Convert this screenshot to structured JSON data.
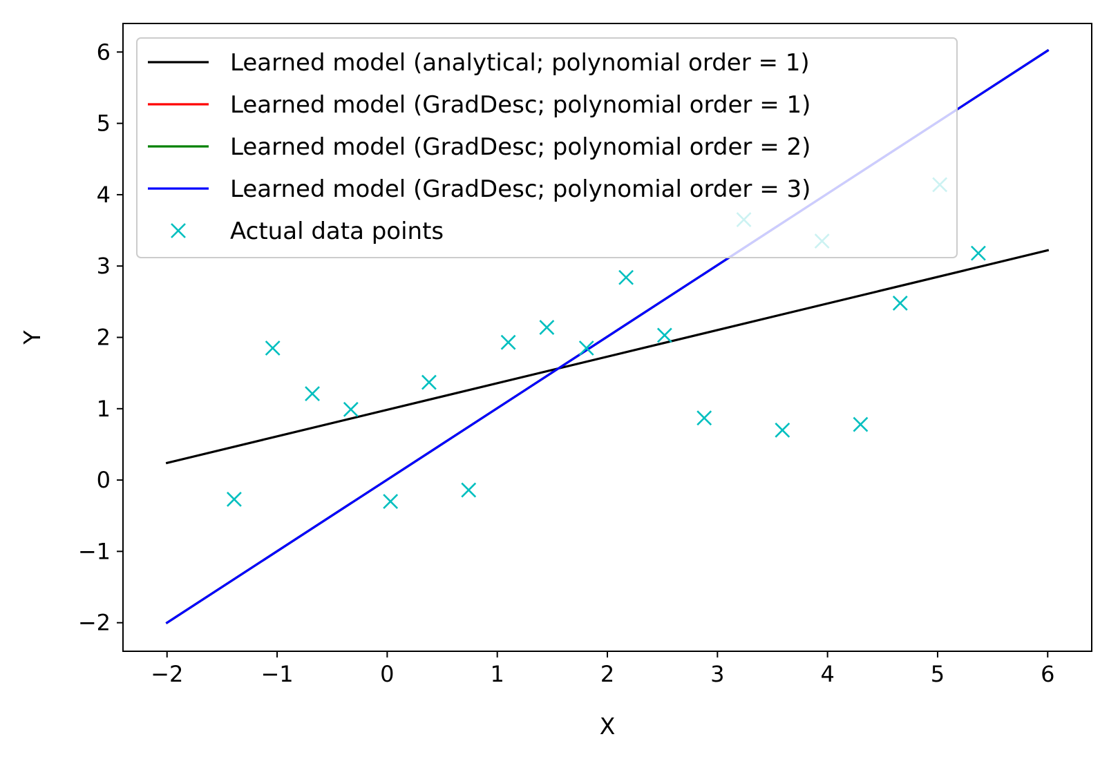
{
  "chart_data": {
    "type": "line",
    "title": "",
    "xlabel": "X",
    "ylabel": "Y",
    "xlim": [
      -2.4,
      6.4
    ],
    "ylim": [
      -2.4,
      6.4
    ],
    "xticks": [
      -2,
      -1,
      0,
      1,
      2,
      3,
      4,
      5,
      6
    ],
    "yticks": [
      -2,
      -1,
      0,
      1,
      2,
      3,
      4,
      5,
      6
    ],
    "xtick_labels": [
      "−2",
      "−1",
      "0",
      "1",
      "2",
      "3",
      "4",
      "5",
      "6"
    ],
    "ytick_labels": [
      "−2",
      "−1",
      "0",
      "1",
      "2",
      "3",
      "4",
      "5",
      "6"
    ],
    "grid": false,
    "legend_position": "upper-left",
    "series": [
      {
        "name": "Learned model (analytical; polynomial order = 1)",
        "kind": "line",
        "color": "#000000",
        "x": [
          -2,
          6
        ],
        "y": [
          0.24,
          3.22
        ]
      },
      {
        "name": "Learned model (GradDesc; polynomial order = 1)",
        "kind": "line",
        "color": "#ff0000",
        "x": [
          -2,
          6
        ],
        "y": [
          -2.0,
          6.02
        ]
      },
      {
        "name": "Learned model (GradDesc; polynomial order = 2)",
        "kind": "line",
        "color": "#008000",
        "x": [
          -2,
          6
        ],
        "y": [
          -2.0,
          6.02
        ]
      },
      {
        "name": "Learned model (GradDesc; polynomial order = 3)",
        "kind": "line",
        "color": "#0000ff",
        "x": [
          -2,
          6
        ],
        "y": [
          -2.0,
          6.02
        ]
      },
      {
        "name": "Actual data points",
        "kind": "scatter",
        "marker": "x",
        "color": "#00bfbf",
        "x": [
          -1.39,
          -1.04,
          -0.68,
          -0.33,
          0.03,
          0.38,
          0.74,
          1.1,
          1.45,
          1.81,
          2.17,
          2.52,
          2.88,
          3.24,
          3.59,
          3.95,
          4.3,
          4.66,
          5.02,
          5.37
        ],
        "y": [
          -0.27,
          1.85,
          1.21,
          0.99,
          -0.3,
          1.37,
          -0.14,
          1.93,
          2.14,
          1.85,
          2.84,
          2.03,
          0.87,
          3.65,
          0.7,
          3.35,
          0.78,
          2.48,
          4.14,
          3.18
        ]
      }
    ]
  }
}
